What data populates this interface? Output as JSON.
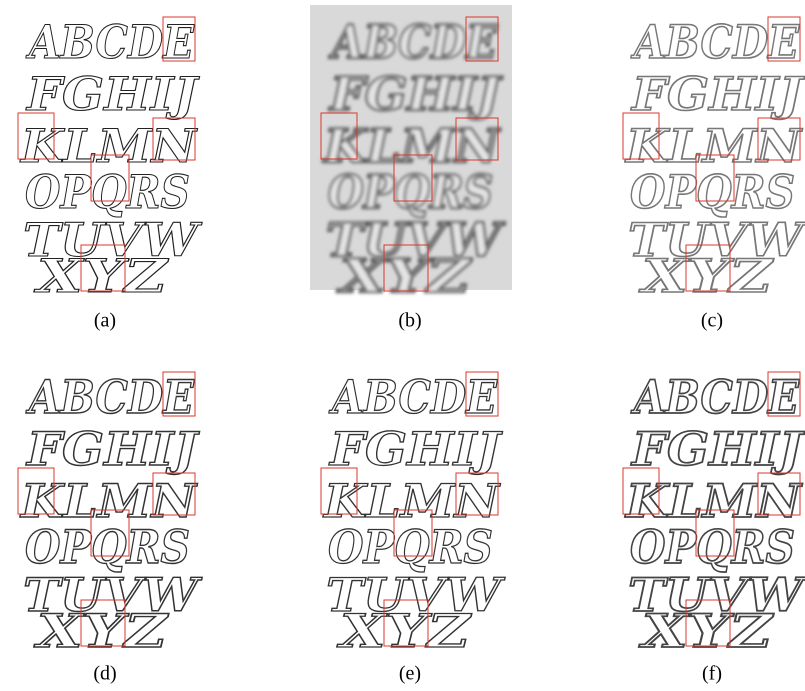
{
  "figure": {
    "letter_rows": [
      "ABCDE",
      "FGHIJ",
      "KLMN",
      "OPQRS",
      "TUVW",
      "XYZ"
    ],
    "panels": [
      {
        "label": "(a)"
      },
      {
        "label": "(b)"
      },
      {
        "label": "(c)"
      },
      {
        "label": "(d)"
      },
      {
        "label": "(e)"
      },
      {
        "label": "(f)"
      }
    ]
  }
}
